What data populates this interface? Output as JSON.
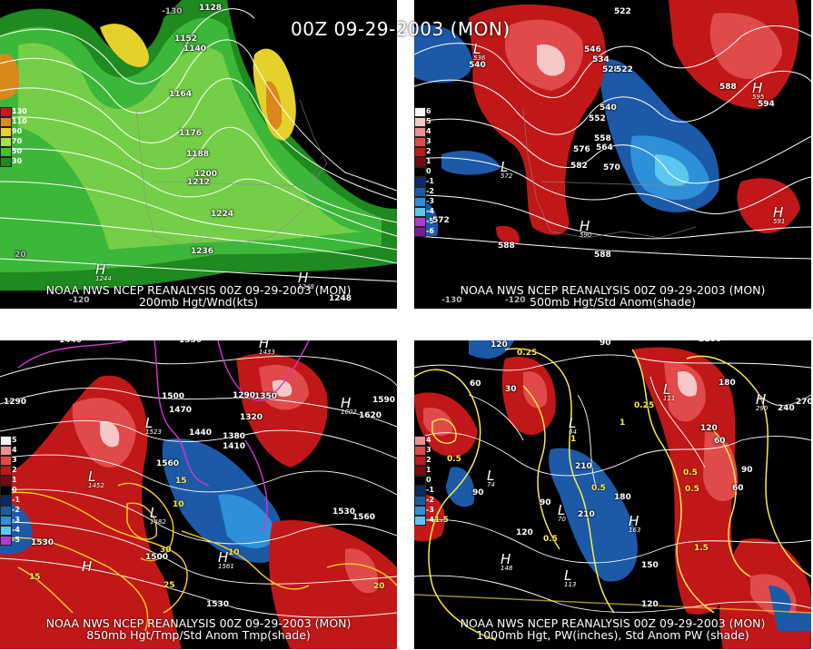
{
  "main_title": "00Z 09-29-2003 (MON)",
  "panels": [
    {
      "caption_line1": "NOAA NWS NCEP REANALYSIS 00Z 09-29-2003 (MON)",
      "caption_line2": "200mb Hgt/Wnd(kts)",
      "legend": [
        {
          "label": "130",
          "color": "#c81818"
        },
        {
          "label": "110",
          "color": "#d88a1c"
        },
        {
          "label": "90",
          "color": "#e8d22a"
        },
        {
          "label": "70",
          "color": "#a8e04a"
        },
        {
          "label": "50",
          "color": "#48c030"
        },
        {
          "label": "30",
          "color": "#1e8a1e"
        }
      ],
      "contour_labels": [
        "1128",
        "1152",
        "1140",
        "1164",
        "1176",
        "1188",
        "1200",
        "1212",
        "1224",
        "1236",
        "1248"
      ],
      "highs": [
        {
          "letter": "H",
          "value": "1244"
        },
        {
          "letter": "H",
          "value": "1248"
        }
      ],
      "lows": [],
      "grid_labels": [
        "-120",
        "-130",
        "20"
      ]
    },
    {
      "caption_line1": "NOAA NWS NCEP REANALYSIS 00Z 09-29-2003 (MON)",
      "caption_line2": "500mb Hgt/Std Anom(shade)",
      "legend": [
        {
          "label": "6",
          "color": "#f5f5f5"
        },
        {
          "label": "5",
          "color": "#f7c8c8"
        },
        {
          "label": "4",
          "color": "#ef8f8f"
        },
        {
          "label": "3",
          "color": "#e04a4a"
        },
        {
          "label": "2",
          "color": "#c01818"
        },
        {
          "label": "1",
          "color": "#7a0a0a"
        },
        {
          "label": "0",
          "color": "#000000"
        },
        {
          "label": "-1",
          "color": "#0a2a6a"
        },
        {
          "label": "-2",
          "color": "#1c5aa8"
        },
        {
          "label": "-3",
          "color": "#2e90d8"
        },
        {
          "label": "-4",
          "color": "#5cc8f0"
        },
        {
          "label": "-5",
          "color": "#b03ad0"
        },
        {
          "label": "-6",
          "color": "#7a1a9a"
        }
      ],
      "contour_labels": [
        "522",
        "540",
        "546",
        "534",
        "528",
        "522",
        "540",
        "552",
        "558",
        "564",
        "576",
        "582",
        "570",
        "588",
        "594",
        "572",
        "588",
        "588"
      ],
      "highs": [
        {
          "letter": "H",
          "value": "590"
        },
        {
          "letter": "H",
          "value": "591"
        },
        {
          "letter": "H",
          "value": "595"
        }
      ],
      "lows": [
        {
          "letter": "L",
          "value": "536"
        },
        {
          "letter": "L",
          "value": "572"
        }
      ],
      "grid_labels": [
        "-130",
        "-120"
      ]
    },
    {
      "caption_line1": "NOAA NWS NCEP REANALYSIS 00Z 09-29-2003 (MON)",
      "caption_line2": "850mb Hgt/Tmp/Std Anom Tmp(shade)",
      "legend": [
        {
          "label": "5",
          "color": "#f5f5f5"
        },
        {
          "label": "4",
          "color": "#ef8f8f"
        },
        {
          "label": "3",
          "color": "#e04a4a"
        },
        {
          "label": "2",
          "color": "#c01818"
        },
        {
          "label": "1",
          "color": "#7a0a0a"
        },
        {
          "label": "0",
          "color": "#000000"
        },
        {
          "label": "-1",
          "color": "#0a2a6a"
        },
        {
          "label": "-2",
          "color": "#1c5aa8"
        },
        {
          "label": "-3",
          "color": "#2e90d8"
        },
        {
          "label": "-4",
          "color": "#5cc8f0"
        },
        {
          "label": "-5",
          "color": "#b03ad0"
        }
      ],
      "contour_labels": [
        "1440",
        "1350",
        "1410",
        "1290",
        "1350",
        "1290",
        "1500",
        "1470",
        "1440",
        "1380",
        "1410",
        "1320",
        "1560",
        "1590",
        "1620",
        "1560",
        "1530",
        "1530",
        "1500",
        "1530"
      ],
      "temp_labels": [
        "15",
        "15",
        "10",
        "20",
        "25",
        "30",
        "10",
        "20"
      ],
      "highs": [
        {
          "letter": "H",
          "value": "1433"
        },
        {
          "letter": "H",
          "value": "1602"
        },
        {
          "letter": "H",
          "value": "1561"
        },
        {
          "letter": "H",
          "value": ""
        }
      ],
      "lows": [
        {
          "letter": "L",
          "value": "1452"
        },
        {
          "letter": "L",
          "value": "1482"
        },
        {
          "letter": "L",
          "value": "1523"
        }
      ],
      "grid_labels": []
    },
    {
      "caption_line1": "NOAA NWS NCEP REANALYSIS 00Z 09-29-2003 (MON)",
      "caption_line2": "1000mb Hgt, PW(inches), Std Anom PW (shade)",
      "legend": [
        {
          "label": "4",
          "color": "#ef8f8f"
        },
        {
          "label": "3",
          "color": "#e04a4a"
        },
        {
          "label": "2",
          "color": "#c01818"
        },
        {
          "label": "1",
          "color": "#7a0a0a"
        },
        {
          "label": "0",
          "color": "#000000"
        },
        {
          "label": "-1",
          "color": "#0a2a6a"
        },
        {
          "label": "-2",
          "color": "#1c5aa8"
        },
        {
          "label": "-3",
          "color": "#2e90d8"
        },
        {
          "label": "-4",
          "color": "#5cc8f0"
        }
      ],
      "contour_labels": [
        "120",
        "90",
        "2100",
        "180",
        "60",
        "30",
        "270",
        "240",
        "210",
        "90",
        "180",
        "210",
        "120",
        "90",
        "150",
        "60",
        "120",
        "90",
        "60",
        "120"
      ],
      "pw_labels": [
        "0.25",
        "0.5",
        "0.25",
        "0.5",
        "0.5",
        "1.5",
        "1",
        "0.5",
        "0.5",
        "1.5",
        "1"
      ],
      "highs": [
        {
          "letter": "H",
          "value": "290"
        },
        {
          "letter": "H",
          "value": "148"
        },
        {
          "letter": "H",
          "value": "163"
        }
      ],
      "lows": [
        {
          "letter": "L",
          "value": "74"
        },
        {
          "letter": "L",
          "value": "70"
        },
        {
          "letter": "L",
          "value": "64"
        },
        {
          "letter": "L",
          "value": "111"
        },
        {
          "letter": "L",
          "value": "113"
        }
      ],
      "grid_labels": []
    }
  ]
}
